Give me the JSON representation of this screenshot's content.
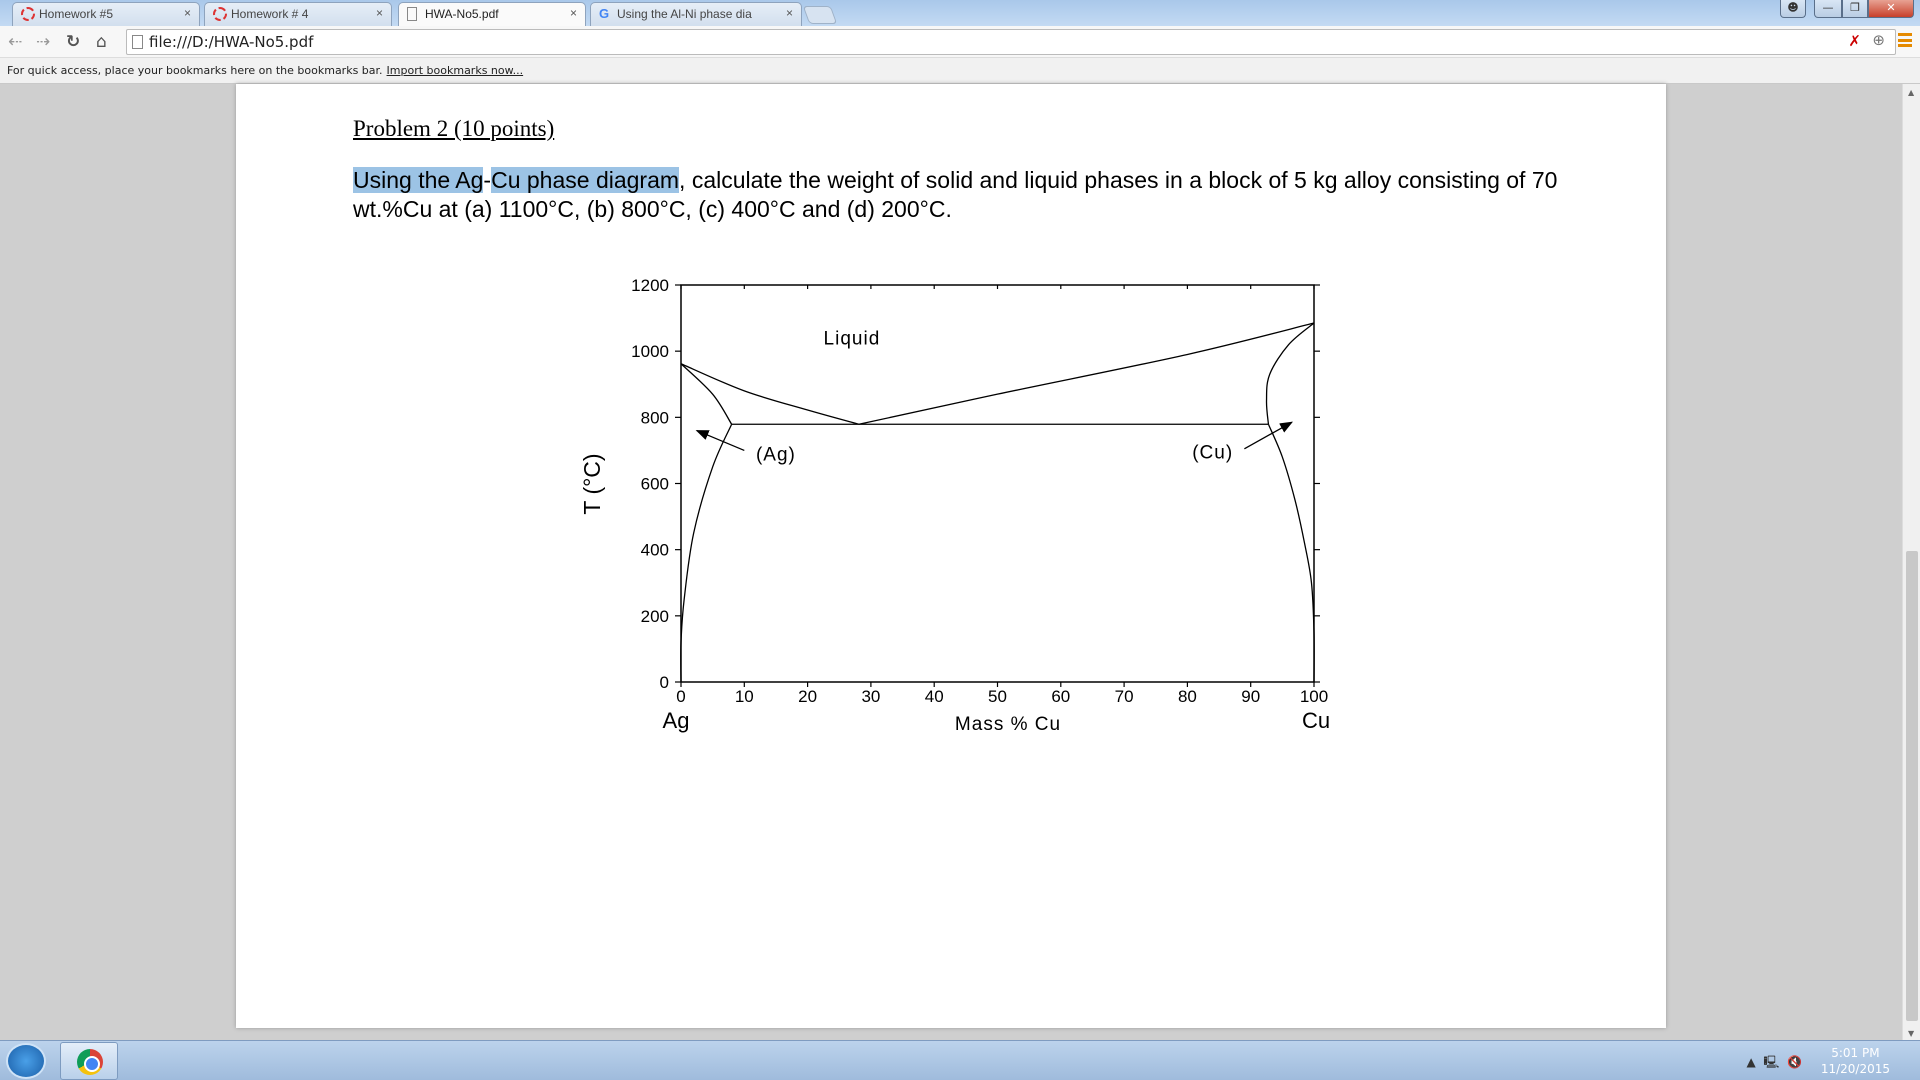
{
  "browser": {
    "tabs": [
      {
        "title": "Homework #5",
        "icon": "loading-spinner-icon",
        "active": false
      },
      {
        "title": "Homework # 4",
        "icon": "loading-spinner-icon",
        "active": false
      },
      {
        "title": "HWA-No5.pdf",
        "icon": "document-icon",
        "active": true
      },
      {
        "title": "Using the Al-Ni phase dia",
        "icon": "google-icon",
        "active": false
      }
    ],
    "close_glyph": "×",
    "address": "file:///D:/HWA-No5.pdf",
    "bookmarks_text": "For quick access, place your bookmarks here on the bookmarks bar.",
    "bookmarks_link": "Import bookmarks now..."
  },
  "document": {
    "title": "Problem 2 (10 points)",
    "highlight1": "Using the Ag",
    "dash": "-",
    "highlight2": "Cu phase diagram",
    "body": ", calculate the weight of solid and liquid phases in a block of 5 kg alloy consisting of 70 wt.%Cu at (a) 1100°C, (b) 800°C, (c) 400°C and (d) 200°C."
  },
  "chart_data": {
    "type": "line",
    "title": "",
    "xlabel": "Mass % Cu",
    "ylabel": "T (°C)",
    "xlim": [
      0,
      100
    ],
    "ylim": [
      0,
      1200
    ],
    "xticks": [
      0,
      10,
      20,
      30,
      40,
      50,
      60,
      70,
      80,
      90,
      100
    ],
    "yticks": [
      0,
      200,
      400,
      600,
      800,
      1000,
      1200
    ],
    "end_labels": {
      "left": "Ag",
      "right": "Cu"
    },
    "grid": false,
    "region_labels": [
      {
        "text": "Liquid",
        "x": 27,
        "y": 1020
      },
      {
        "text": "(Ag)",
        "x": 15,
        "y": 670
      },
      {
        "text": "(Cu)",
        "x": 84,
        "y": 675
      }
    ],
    "arrows": [
      {
        "from": [
          10,
          700
        ],
        "to": [
          2.5,
          760
        ]
      },
      {
        "from": [
          89,
          705
        ],
        "to": [
          96.5,
          785
        ]
      }
    ],
    "series": [
      {
        "x": [
          0,
          10,
          20,
          28.1
        ],
        "y": [
          962,
          880,
          822,
          779
        ]
      },
      {
        "x": [
          28.1,
          50,
          80,
          100
        ],
        "y": [
          779,
          870,
          990,
          1085
        ]
      },
      {
        "x": [
          0,
          5,
          8
        ],
        "y": [
          962,
          870,
          779
        ]
      },
      {
        "x": [
          8,
          5,
          2,
          0.5,
          0,
          0
        ],
        "y": [
          779,
          650,
          450,
          250,
          120,
          0
        ]
      },
      {
        "x": [
          100,
          96,
          93,
          92.5,
          92.8
        ],
        "y": [
          1085,
          1020,
          930,
          850,
          779
        ]
      },
      {
        "x": [
          92.8,
          95,
          97,
          98.5,
          99.6,
          100,
          100
        ],
        "y": [
          779,
          680,
          550,
          420,
          300,
          150,
          0
        ]
      },
      {
        "x": [
          8,
          92.8
        ],
        "y": [
          779,
          779
        ]
      }
    ]
  },
  "taskbar": {
    "time": "5:01 PM",
    "date": "11/20/2015"
  },
  "colors": {
    "highlight": "#9cc3e5",
    "menu": "#e58a00"
  }
}
